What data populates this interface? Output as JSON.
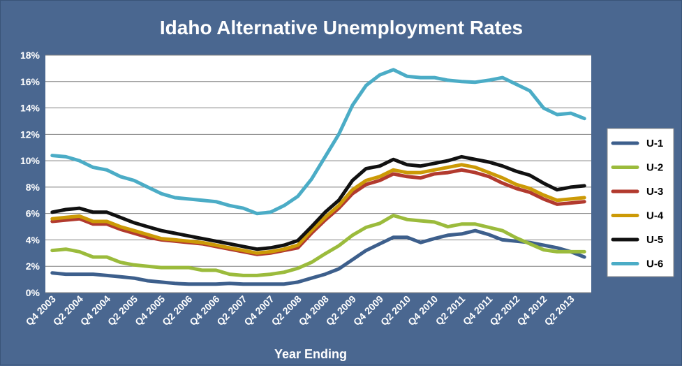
{
  "colors": {
    "background": "#4a6790",
    "plot_area": "#ffffff",
    "gridline": "#7f7f7f",
    "text": "#ffffff"
  },
  "chart_data": {
    "type": "line",
    "title": "Idaho Alternative Unemployment Rates",
    "xlabel": "Year Ending",
    "ylabel": "",
    "ylim": [
      0,
      18
    ],
    "y_ticks": [
      "0%",
      "2%",
      "4%",
      "6%",
      "8%",
      "10%",
      "12%",
      "14%",
      "16%",
      "18%"
    ],
    "x": [
      "Q4 2003",
      "Q1 2004",
      "Q2 2004",
      "Q3 2004",
      "Q4 2004",
      "Q1 2005",
      "Q2 2005",
      "Q3 2005",
      "Q4 2005",
      "Q1 2006",
      "Q2 2006",
      "Q3 2006",
      "Q4 2006",
      "Q1 2007",
      "Q2 2007",
      "Q3 2007",
      "Q4 2007",
      "Q1 2008",
      "Q2 2008",
      "Q3 2008",
      "Q4 2008",
      "Q1 2009",
      "Q2 2009",
      "Q3 2009",
      "Q4 2009",
      "Q1 2010",
      "Q2 2010",
      "Q3 2010",
      "Q4 2010",
      "Q1 2011",
      "Q2 2011",
      "Q3 2011",
      "Q4 2011",
      "Q1 2012",
      "Q2 2012",
      "Q3 2012",
      "Q4 2012",
      "Q1 2013",
      "Q2 2013",
      "Q3 2013"
    ],
    "x_tick_labels": [
      "Q4 2003",
      "Q2 2004",
      "Q4 2004",
      "Q2 2005",
      "Q4 2005",
      "Q2 2006",
      "Q4 2006",
      "Q2 2007",
      "Q4 2007",
      "Q2 2008",
      "Q4 2008",
      "Q2 2009",
      "Q4 2009",
      "Q2 2010",
      "Q4 2010",
      "Q2 2011",
      "Q4 2011",
      "Q2 2012",
      "Q4 2012",
      "Q2 2013"
    ],
    "grid": true,
    "legend_position": "right",
    "series": [
      {
        "name": "U-1",
        "color": "#3d5f8c",
        "values": [
          1.5,
          1.4,
          1.4,
          1.4,
          1.3,
          1.2,
          1.1,
          0.9,
          0.8,
          0.7,
          0.65,
          0.65,
          0.65,
          0.7,
          0.65,
          0.65,
          0.65,
          0.65,
          0.8,
          1.1,
          1.4,
          1.8,
          2.5,
          3.2,
          3.7,
          4.2,
          4.2,
          3.8,
          4.1,
          4.35,
          4.45,
          4.7,
          4.4,
          4.0,
          3.9,
          3.8,
          3.6,
          3.4,
          3.1,
          2.7
        ]
      },
      {
        "name": "U-2",
        "color": "#9bbb3c",
        "values": [
          3.2,
          3.3,
          3.1,
          2.7,
          2.7,
          2.3,
          2.1,
          2.0,
          1.9,
          1.9,
          1.9,
          1.7,
          1.7,
          1.4,
          1.3,
          1.3,
          1.4,
          1.55,
          1.85,
          2.3,
          2.95,
          3.55,
          4.35,
          4.95,
          5.25,
          5.85,
          5.55,
          5.45,
          5.35,
          5.0,
          5.2,
          5.2,
          4.95,
          4.7,
          4.15,
          3.7,
          3.25,
          3.1,
          3.1,
          3.1
        ]
      },
      {
        "name": "U-3",
        "color": "#b23a2e",
        "values": [
          5.4,
          5.5,
          5.6,
          5.2,
          5.2,
          4.8,
          4.5,
          4.2,
          4.0,
          3.9,
          3.8,
          3.7,
          3.5,
          3.3,
          3.1,
          2.9,
          3.0,
          3.2,
          3.4,
          4.5,
          5.5,
          6.4,
          7.5,
          8.2,
          8.5,
          9.0,
          8.8,
          8.7,
          9.0,
          9.1,
          9.3,
          9.1,
          8.8,
          8.3,
          7.9,
          7.6,
          7.1,
          6.7,
          6.8,
          6.9
        ]
      },
      {
        "name": "U-4",
        "color": "#cc9a06",
        "values": [
          5.6,
          5.7,
          5.8,
          5.4,
          5.4,
          5.0,
          4.7,
          4.4,
          4.1,
          4.0,
          3.9,
          3.8,
          3.6,
          3.4,
          3.2,
          3.0,
          3.1,
          3.3,
          3.6,
          4.7,
          5.7,
          6.6,
          7.8,
          8.5,
          8.8,
          9.3,
          9.1,
          9.1,
          9.3,
          9.5,
          9.7,
          9.5,
          9.1,
          8.7,
          8.2,
          7.9,
          7.4,
          7.0,
          7.1,
          7.2
        ]
      },
      {
        "name": "U-5",
        "color": "#111111",
        "values": [
          6.1,
          6.3,
          6.4,
          6.1,
          6.1,
          5.7,
          5.3,
          5.0,
          4.7,
          4.5,
          4.3,
          4.1,
          3.9,
          3.7,
          3.5,
          3.3,
          3.4,
          3.6,
          3.95,
          5.0,
          6.1,
          7.0,
          8.5,
          9.4,
          9.6,
          10.1,
          9.7,
          9.6,
          9.8,
          10.0,
          10.3,
          10.1,
          9.9,
          9.6,
          9.2,
          8.9,
          8.3,
          7.8,
          8.0,
          8.1
        ]
      },
      {
        "name": "U-6",
        "color": "#4bacc6",
        "values": [
          10.4,
          10.3,
          10.0,
          9.5,
          9.3,
          8.8,
          8.5,
          8.0,
          7.5,
          7.2,
          7.1,
          7.0,
          6.9,
          6.6,
          6.4,
          6.0,
          6.1,
          6.6,
          7.3,
          8.6,
          10.3,
          12.0,
          14.2,
          15.7,
          16.5,
          16.9,
          16.4,
          16.3,
          16.3,
          16.1,
          16.0,
          15.95,
          16.1,
          16.3,
          15.8,
          15.3,
          14.0,
          13.5,
          13.6,
          13.2
        ]
      }
    ]
  }
}
